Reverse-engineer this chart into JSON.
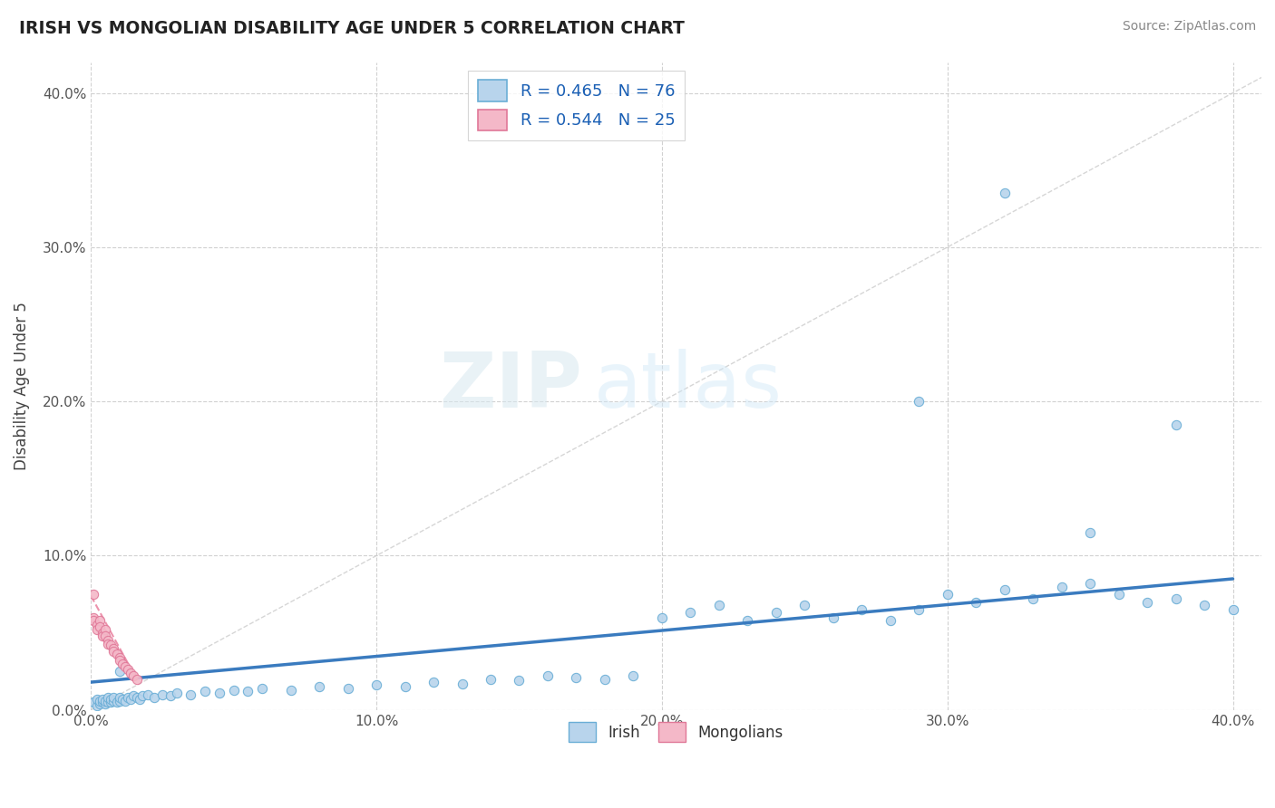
{
  "title": "IRISH VS MONGOLIAN DISABILITY AGE UNDER 5 CORRELATION CHART",
  "source": "Source: ZipAtlas.com",
  "ylabel": "Disability Age Under 5",
  "xlim": [
    0.0,
    0.41
  ],
  "ylim": [
    0.0,
    0.42
  ],
  "irish_R": 0.465,
  "irish_N": 76,
  "mongolian_R": 0.544,
  "mongolian_N": 25,
  "irish_color": "#b8d4ec",
  "irish_edge_color": "#6aaed6",
  "mongolian_color": "#f4b8c8",
  "mongolian_edge_color": "#e07898",
  "irish_line_color": "#3a7bbf",
  "mongolian_line_color": "#e87898",
  "background_color": "#ffffff",
  "grid_color": "#cccccc",
  "watermark_zip": "ZIP",
  "watermark_atlas": "atlas",
  "irish_x": [
    0.001,
    0.002,
    0.002,
    0.003,
    0.003,
    0.004,
    0.004,
    0.005,
    0.005,
    0.006,
    0.006,
    0.007,
    0.007,
    0.008,
    0.008,
    0.009,
    0.01,
    0.01,
    0.011,
    0.012,
    0.013,
    0.014,
    0.015,
    0.016,
    0.017,
    0.018,
    0.02,
    0.022,
    0.025,
    0.028,
    0.03,
    0.035,
    0.04,
    0.045,
    0.05,
    0.055,
    0.06,
    0.07,
    0.08,
    0.09,
    0.1,
    0.11,
    0.12,
    0.13,
    0.14,
    0.15,
    0.16,
    0.17,
    0.18,
    0.19,
    0.2,
    0.21,
    0.22,
    0.23,
    0.24,
    0.25,
    0.26,
    0.27,
    0.28,
    0.29,
    0.3,
    0.31,
    0.32,
    0.33,
    0.34,
    0.35,
    0.36,
    0.37,
    0.38,
    0.39,
    0.32,
    0.29,
    0.35,
    0.38,
    0.4,
    0.01
  ],
  "irish_y": [
    0.005,
    0.003,
    0.007,
    0.004,
    0.006,
    0.005,
    0.007,
    0.004,
    0.006,
    0.005,
    0.008,
    0.005,
    0.007,
    0.006,
    0.008,
    0.005,
    0.006,
    0.008,
    0.007,
    0.006,
    0.008,
    0.007,
    0.009,
    0.008,
    0.007,
    0.009,
    0.01,
    0.008,
    0.01,
    0.009,
    0.011,
    0.01,
    0.012,
    0.011,
    0.013,
    0.012,
    0.014,
    0.013,
    0.015,
    0.014,
    0.016,
    0.015,
    0.018,
    0.017,
    0.02,
    0.019,
    0.022,
    0.021,
    0.02,
    0.022,
    0.06,
    0.063,
    0.068,
    0.058,
    0.063,
    0.068,
    0.06,
    0.065,
    0.058,
    0.065,
    0.075,
    0.07,
    0.078,
    0.072,
    0.08,
    0.082,
    0.075,
    0.07,
    0.072,
    0.068,
    0.335,
    0.2,
    0.115,
    0.185,
    0.065,
    0.025
  ],
  "mongolian_x": [
    0.001,
    0.001,
    0.002,
    0.002,
    0.003,
    0.003,
    0.004,
    0.004,
    0.005,
    0.005,
    0.006,
    0.006,
    0.007,
    0.008,
    0.008,
    0.009,
    0.01,
    0.01,
    0.011,
    0.012,
    0.013,
    0.014,
    0.015,
    0.016,
    0.001
  ],
  "mongolian_y": [
    0.06,
    0.058,
    0.055,
    0.052,
    0.058,
    0.054,
    0.05,
    0.048,
    0.052,
    0.048,
    0.045,
    0.043,
    0.042,
    0.04,
    0.038,
    0.036,
    0.034,
    0.032,
    0.03,
    0.028,
    0.026,
    0.024,
    0.022,
    0.02,
    0.075
  ],
  "irish_trend_x": [
    0.0,
    0.4
  ],
  "irish_trend_y": [
    0.018,
    0.085
  ],
  "mongolian_trend_x": [
    0.0,
    0.016
  ],
  "mongolian_trend_y": [
    0.074,
    0.02
  ]
}
